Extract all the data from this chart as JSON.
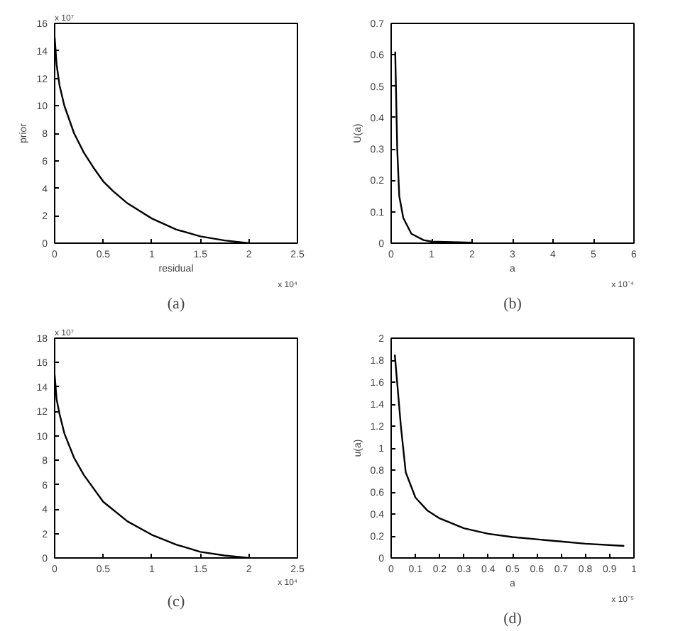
{
  "chart_data": [
    {
      "type": "line",
      "title": "(a)",
      "xlabel": "residual",
      "ylabel": "prior",
      "annotations": [
        "x 10⁷",
        "x 10⁴"
      ],
      "color": "#000000",
      "x": [
        0,
        0.02,
        0.05,
        0.1,
        0.2,
        0.3,
        0.4,
        0.5,
        0.6,
        0.75,
        1,
        1.25,
        1.5,
        1.75,
        2
      ],
      "values": [
        15,
        13,
        11.5,
        10,
        8,
        6.6,
        5.5,
        4.5,
        3.8,
        2.9,
        1.8,
        1.0,
        0.5,
        0.2,
        0
      ],
      "xlim": [
        0,
        2.5
      ],
      "xticks": [
        0,
        0.5,
        1,
        1.5,
        2,
        2.5
      ],
      "ylim": [
        0,
        16
      ],
      "yticks": [
        0,
        2,
        4,
        6,
        8,
        10,
        12,
        14,
        16
      ],
      "grid": false
    },
    {
      "type": "line",
      "title": "(b)",
      "xlabel": "a",
      "ylabel": "U(a)",
      "annotations": [
        "x 10⁻⁴"
      ],
      "color": "#000000",
      "x": [
        0.1,
        0.15,
        0.2,
        0.3,
        0.5,
        0.8,
        1,
        2
      ],
      "values": [
        0.61,
        0.3,
        0.15,
        0.08,
        0.03,
        0.01,
        0.005,
        0.002
      ],
      "xlim": [
        0,
        6
      ],
      "xticks": [
        0,
        1,
        2,
        3,
        4,
        5,
        6
      ],
      "ylim": [
        0,
        0.7
      ],
      "yticks": [
        0,
        0.1,
        0.2,
        0.3,
        0.4,
        0.5,
        0.6,
        0.7
      ],
      "grid": false
    },
    {
      "type": "line",
      "title": "(c)",
      "annotations": [
        "x 10⁷",
        "x 10⁴"
      ],
      "color": "#000000",
      "x": [
        0,
        0.02,
        0.05,
        0.1,
        0.2,
        0.3,
        0.5,
        0.75,
        1,
        1.25,
        1.5,
        1.75,
        2
      ],
      "values": [
        15,
        13,
        11.8,
        10.2,
        8.2,
        6.8,
        4.6,
        3,
        1.9,
        1.1,
        0.5,
        0.2,
        0
      ],
      "xlim": [
        0,
        2.5
      ],
      "xticks": [
        0,
        0.5,
        1,
        1.5,
        2,
        2.5
      ],
      "ylim": [
        0,
        18
      ],
      "yticks": [
        0,
        2,
        4,
        6,
        8,
        10,
        12,
        14,
        16,
        18
      ],
      "grid": false
    },
    {
      "type": "line",
      "title": "(d)",
      "xlabel": "a",
      "ylabel": "u(a)",
      "annotations": [
        "x 10⁻⁵"
      ],
      "color": "#000000",
      "x": [
        0.015,
        0.04,
        0.06,
        0.1,
        0.15,
        0.2,
        0.3,
        0.4,
        0.5,
        0.6,
        0.7,
        0.8,
        0.96
      ],
      "values": [
        1.85,
        1.2,
        0.78,
        0.55,
        0.43,
        0.36,
        0.27,
        0.22,
        0.19,
        0.17,
        0.15,
        0.13,
        0.11
      ],
      "xlim": [
        0,
        1
      ],
      "xticks": [
        0,
        0.1,
        0.2,
        0.3,
        0.4,
        0.5,
        0.6,
        0.7,
        0.8,
        0.9,
        1
      ],
      "ylim": [
        0,
        2
      ],
      "yticks": [
        0,
        0.2,
        0.4,
        0.6,
        0.8,
        1,
        1.2,
        1.4,
        1.6,
        1.8,
        2
      ],
      "grid": false
    }
  ]
}
